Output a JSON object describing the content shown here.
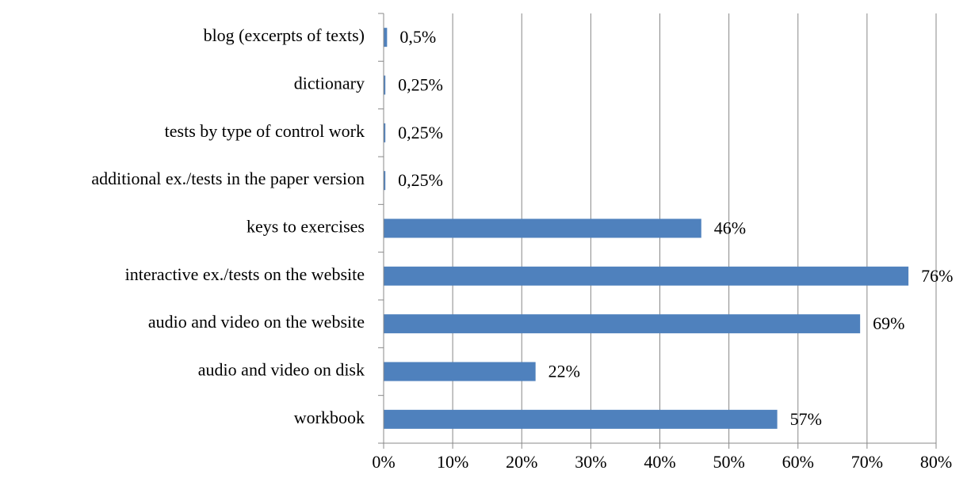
{
  "chart_data": {
    "type": "barh",
    "categories": [
      "blog (excerpts of texts)",
      "dictionary",
      "tests by type of control work",
      "additional ex./tests in the paper version",
      "keys to exercises",
      "interactive ex./tests on the website",
      "audio and video on the website",
      "audio and video on disk",
      "workbook"
    ],
    "values": [
      0.5,
      0.25,
      0.25,
      0.25,
      46,
      76,
      69,
      22,
      57
    ],
    "value_labels": [
      "0,5%",
      "0,25%",
      "0,25%",
      "0,25%",
      "46%",
      "76%",
      "69%",
      "22%",
      "57%"
    ],
    "color": "#4f81bd",
    "xlim": [
      0,
      80
    ],
    "xticks": [
      {
        "value": 0,
        "label": "0%"
      },
      {
        "value": 10,
        "label": "10%"
      },
      {
        "value": 20,
        "label": "20%"
      },
      {
        "value": 30,
        "label": "30%"
      },
      {
        "value": 40,
        "label": "40%"
      },
      {
        "value": 50,
        "label": "50%"
      },
      {
        "value": 60,
        "label": "60%"
      },
      {
        "value": 70,
        "label": "70%"
      },
      {
        "value": 80,
        "label": "80%"
      }
    ],
    "grid": true
  }
}
